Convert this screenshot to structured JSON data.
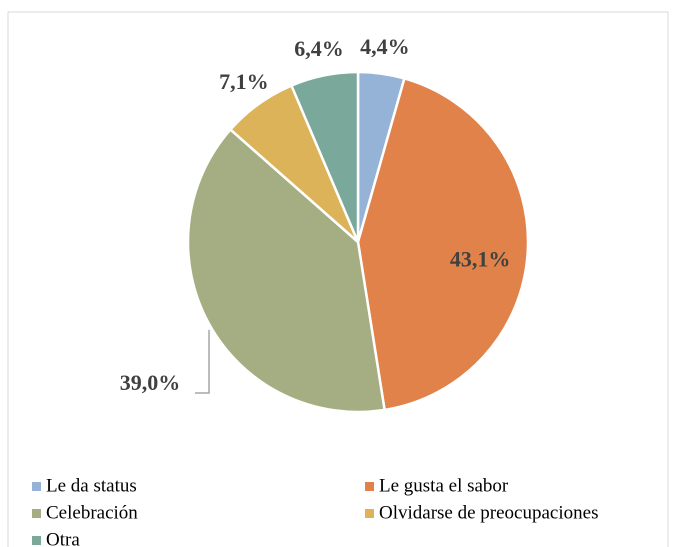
{
  "chart_data": {
    "type": "pie",
    "categories": [
      "Le da status",
      "Le gusta el sabor",
      "Celebración",
      "Olvidarse de preocupaciones",
      "Otra"
    ],
    "values": [
      4.4,
      43.1,
      39.0,
      7.1,
      6.4
    ],
    "value_labels": [
      "4,4%",
      "43,1%",
      "39,0%",
      "7,1%",
      "6,4%"
    ],
    "colors": [
      "#95b3d7",
      "#e0824a",
      "#a5ad82",
      "#ddb35a",
      "#7aa89a"
    ]
  }
}
